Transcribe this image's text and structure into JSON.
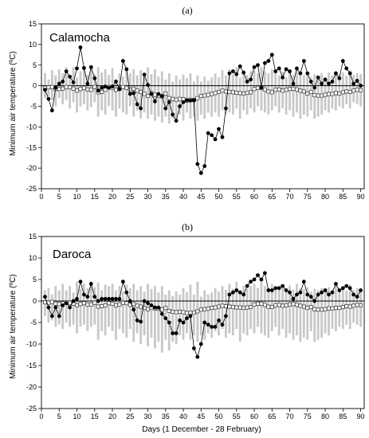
{
  "chart_data": [
    {
      "type": "line",
      "panel_label": "(a)",
      "site": "Calamocha",
      "ylabel": "Minimum air temperature (ºC)",
      "xlabel": "",
      "xlim": [
        0,
        91
      ],
      "ylim": [
        -25,
        15
      ],
      "xticks": [
        0,
        5,
        10,
        15,
        20,
        25,
        30,
        35,
        40,
        45,
        50,
        55,
        60,
        65,
        70,
        75,
        80,
        85,
        90
      ],
      "yticks": [
        15,
        10,
        5,
        0,
        -5,
        -10,
        -15,
        -20,
        -25
      ],
      "x": [
        1,
        2,
        3,
        4,
        5,
        6,
        7,
        8,
        9,
        10,
        11,
        12,
        13,
        14,
        15,
        16,
        17,
        18,
        19,
        20,
        21,
        22,
        23,
        24,
        25,
        26,
        27,
        28,
        29,
        30,
        31,
        32,
        33,
        34,
        35,
        36,
        37,
        38,
        39,
        40,
        41,
        42,
        43,
        44,
        45,
        46,
        47,
        48,
        49,
        50,
        51,
        52,
        53,
        54,
        55,
        56,
        57,
        58,
        59,
        60,
        61,
        62,
        63,
        64,
        65,
        66,
        67,
        68,
        69,
        70,
        71,
        72,
        73,
        74,
        75,
        76,
        77,
        78,
        79,
        80,
        81,
        82,
        83,
        84,
        85,
        86,
        87,
        88,
        89,
        90
      ],
      "series": [
        {
          "name": "",
          "marker": "filled-circle",
          "values": [
            -1.0,
            -3.2,
            -6.0,
            -0.5,
            0.5,
            1.0,
            3.5,
            2.2,
            0.8,
            4.2,
            9.3,
            4.3,
            0.5,
            4.5,
            1.8,
            -1.2,
            -0.5,
            -0.2,
            -0.5,
            -0.2,
            1.0,
            -0.8,
            6.0,
            4.0,
            -2.0,
            -1.8,
            -4.5,
            -5.5,
            2.7,
            0.2,
            -2.0,
            -3.8,
            -2.0,
            -2.5,
            -5.5,
            -4.0,
            -7.0,
            -8.5,
            -5.0,
            -4.0,
            -3.5,
            -3.6,
            -3.5,
            -19.0,
            -21.2,
            -19.5,
            -11.5,
            -12.0,
            -13.0,
            -10.5,
            -12.5,
            -5.5,
            3.0,
            3.5,
            2.8,
            4.7,
            3.2,
            1.0,
            1.5,
            4.5,
            5.0,
            -0.5,
            5.5,
            6.0,
            7.5,
            3.5,
            4.2,
            2.0,
            4.0,
            3.5,
            0.5,
            4.2,
            3.0,
            6.0,
            3.0,
            1.0,
            -0.5,
            2.0,
            0.5,
            1.5,
            0.5,
            1.0,
            3.0,
            1.8,
            6.0,
            4.2,
            3.0,
            0.5,
            1.2,
            0.0
          ]
        },
        {
          "name": "",
          "marker": "open-square",
          "values": [
            -0.5,
            -0.4,
            -0.3,
            -0.8,
            -0.8,
            -0.7,
            -0.3,
            -0.4,
            -0.7,
            -1.2,
            -0.8,
            -0.5,
            -0.9,
            -1.0,
            -0.3,
            -1.6,
            -1.5,
            -1.0,
            -0.3,
            -0.5,
            -1.0,
            -0.8,
            -0.3,
            -0.5,
            -1.0,
            -0.7,
            -1.2,
            -1.5,
            -2.0,
            -2.5,
            -1.8,
            -2.2,
            -2.4,
            -2.6,
            -1.9,
            -3.0,
            -3.2,
            -3.4,
            -3.2,
            -3.3,
            -3.6,
            -3.4,
            -3.5,
            -3.0,
            -2.5,
            -2.4,
            -2.2,
            -2.0,
            -1.8,
            -1.5,
            -1.2,
            -1.4,
            -1.5,
            -1.6,
            -1.7,
            -1.8,
            -1.9,
            -1.7,
            -1.6,
            -0.8,
            -0.5,
            -0.5,
            -0.9,
            -1.4,
            -1.6,
            -1.0,
            -0.9,
            -1.2,
            -1.0,
            -0.8,
            -0.7,
            -0.9,
            -1.2,
            -1.4,
            -1.9,
            -1.5,
            -2.3,
            -2.4,
            -2.4,
            -2.2,
            -2.0,
            -2.0,
            -1.8,
            -1.9,
            -1.6,
            -1.4,
            -1.5,
            -1.2,
            -1.0,
            -1.1
          ]
        }
      ],
      "range_bars": {
        "color": "#c8c8c8",
        "upper": [
          3.0,
          1.5,
          3.8,
          2.5,
          4.0,
          3.0,
          4.5,
          1.8,
          4.5,
          2.0,
          3.5,
          4.0,
          2.6,
          4.2,
          2.8,
          4.5,
          3.2,
          4.0,
          2.6,
          4.3,
          1.6,
          3.0,
          2.2,
          3.5,
          3.0,
          4.0,
          2.5,
          3.8,
          2.2,
          4.5,
          2.8,
          4.0,
          2.2,
          3.5,
          1.5,
          3.0,
          1.0,
          2.5,
          1.5,
          2.7,
          1.8,
          3.0,
          1.0,
          2.5,
          1.0,
          2.2,
          1.2,
          2.0,
          3.0,
          2.0,
          3.8,
          2.5,
          4.0,
          2.8,
          4.5,
          2.0,
          3.5,
          2.6,
          3.5,
          3.8,
          3.0,
          4.5,
          3.5,
          3.0,
          4.0,
          3.2,
          2.5,
          3.4,
          2.0,
          3.5,
          2.6,
          4.0,
          3.0,
          2.6,
          3.2,
          2.0,
          2.8,
          2.4,
          3.0,
          2.0,
          3.2,
          2.5,
          3.6,
          2.8,
          3.2,
          2.4,
          3.8,
          2.6,
          3.0,
          2.8
        ],
        "lower": [
          -3.0,
          -2.5,
          -3.5,
          -5.0,
          -3.0,
          -4.5,
          -3.5,
          -5.5,
          -4.0,
          -6.5,
          -5.0,
          -4.5,
          -6.0,
          -5.2,
          -4.0,
          -7.5,
          -6.0,
          -7.0,
          -5.0,
          -6.0,
          -7.5,
          -5.5,
          -6.5,
          -7.0,
          -5.0,
          -7.5,
          -6.0,
          -8.0,
          -6.5,
          -8.0,
          -7.0,
          -8.5,
          -7.5,
          -9.0,
          -7.5,
          -9.2,
          -8.0,
          -9.0,
          -7.0,
          -8.5,
          -6.5,
          -8.0,
          -7.5,
          -8.5,
          -7.0,
          -8.0,
          -6.5,
          -7.5,
          -6.5,
          -7.5,
          -6.0,
          -7.0,
          -6.5,
          -7.0,
          -5.5,
          -8.0,
          -6.0,
          -7.0,
          -5.5,
          -6.5,
          -5.0,
          -6.0,
          -6.5,
          -7.0,
          -6.0,
          -5.0,
          -6.5,
          -5.5,
          -7.0,
          -6.0,
          -7.5,
          -6.5,
          -8.0,
          -7.0,
          -7.5,
          -6.0,
          -8.0,
          -7.5,
          -7.0,
          -6.0,
          -6.5,
          -5.5,
          -6.0,
          -5.0,
          -5.5,
          -4.5,
          -5.5,
          -4.0,
          -4.5,
          -5.0
        ]
      }
    },
    {
      "type": "line",
      "panel_label": "(b)",
      "site": "Daroca",
      "ylabel": "Minimum air temperature (ºC)",
      "xlabel": "Days (1 December - 28 February)",
      "xlim": [
        0,
        91
      ],
      "ylim": [
        -25,
        15
      ],
      "xticks": [
        0,
        5,
        10,
        15,
        20,
        25,
        30,
        35,
        40,
        45,
        50,
        55,
        60,
        65,
        70,
        75,
        80,
        85,
        90
      ],
      "yticks": [
        15,
        10,
        5,
        0,
        -5,
        -10,
        -15,
        -20,
        -25
      ],
      "x": [
        1,
        2,
        3,
        4,
        5,
        6,
        7,
        8,
        9,
        10,
        11,
        12,
        13,
        14,
        15,
        16,
        17,
        18,
        19,
        20,
        21,
        22,
        23,
        24,
        25,
        26,
        27,
        28,
        29,
        30,
        31,
        32,
        33,
        34,
        35,
        36,
        37,
        38,
        39,
        40,
        41,
        42,
        43,
        44,
        45,
        46,
        47,
        48,
        49,
        50,
        51,
        52,
        53,
        54,
        55,
        56,
        57,
        58,
        59,
        60,
        61,
        62,
        63,
        64,
        65,
        66,
        67,
        68,
        69,
        70,
        71,
        72,
        73,
        74,
        75,
        76,
        77,
        78,
        79,
        80,
        81,
        82,
        83,
        84,
        85,
        86,
        87,
        88,
        89,
        90
      ],
      "series": [
        {
          "name": "",
          "marker": "filled-circle",
          "values": [
            1.0,
            -1.5,
            -3.5,
            -1.5,
            -3.5,
            -1.0,
            -0.5,
            -1.5,
            0.0,
            0.5,
            4.5,
            1.5,
            1.0,
            4.0,
            1.0,
            0.0,
            0.5,
            0.5,
            0.5,
            0.5,
            0.5,
            0.5,
            4.5,
            2.0,
            0.0,
            -2.0,
            -4.5,
            -4.8,
            0.0,
            -0.5,
            -1.0,
            -1.5,
            -1.5,
            -3.0,
            -4.0,
            -5.0,
            -7.5,
            -7.5,
            -4.5,
            -5.0,
            -4.0,
            -3.5,
            -11.0,
            -13.0,
            -10.0,
            -5.0,
            -5.5,
            -6.0,
            -6.0,
            -4.5,
            -5.5,
            -3.5,
            1.5,
            2.0,
            2.5,
            2.0,
            1.5,
            3.5,
            4.5,
            5.0,
            6.0,
            5.0,
            6.5,
            2.5,
            2.5,
            3.0,
            3.0,
            3.5,
            2.5,
            2.0,
            0.5,
            1.5,
            2.0,
            4.5,
            1.5,
            1.0,
            0.0,
            1.5,
            2.0,
            2.5,
            1.5,
            2.0,
            4.0,
            2.5,
            3.0,
            3.5,
            3.0,
            1.5,
            1.0,
            2.5
          ]
        },
        {
          "name": "",
          "marker": "open-square",
          "values": [
            -0.3,
            -0.4,
            -0.2,
            -0.6,
            -0.7,
            -0.5,
            -0.3,
            -0.4,
            -0.6,
            -1.0,
            -0.7,
            -0.5,
            -0.8,
            -0.8,
            -0.4,
            -1.3,
            -1.2,
            -1.0,
            -0.5,
            -0.6,
            -1.0,
            -0.8,
            -0.4,
            -0.5,
            -0.9,
            -0.7,
            -1.1,
            -1.3,
            -1.6,
            -1.9,
            -1.5,
            -1.7,
            -1.8,
            -2.0,
            -1.6,
            -2.3,
            -2.5,
            -2.6,
            -2.5,
            -2.6,
            -2.8,
            -2.7,
            -2.7,
            -2.4,
            -2.0,
            -1.9,
            -1.8,
            -1.6,
            -1.5,
            -1.3,
            -1.1,
            -1.2,
            -1.3,
            -1.4,
            -1.5,
            -1.5,
            -1.6,
            -1.5,
            -1.4,
            -0.8,
            -0.6,
            -0.6,
            -0.9,
            -1.3,
            -1.4,
            -1.0,
            -0.9,
            -1.1,
            -1.0,
            -0.8,
            -0.7,
            -0.9,
            -1.1,
            -1.3,
            -1.6,
            -1.4,
            -1.9,
            -2.0,
            -2.0,
            -1.9,
            -1.7,
            -1.7,
            -1.6,
            -1.6,
            -1.4,
            -1.2,
            -1.3,
            -1.1,
            -0.9,
            -1.0
          ]
        }
      ],
      "range_bars": {
        "color": "#c8c8c8",
        "upper": [
          2.5,
          3.0,
          1.5,
          3.5,
          2.5,
          4.0,
          2.5,
          3.5,
          2.0,
          4.5,
          2.8,
          4.0,
          3.0,
          4.5,
          3.2,
          4.3,
          2.5,
          3.8,
          3.5,
          4.0,
          2.5,
          3.5,
          2.2,
          3.8,
          3.0,
          4.0,
          2.5,
          3.5,
          2.2,
          4.0,
          2.8,
          3.5,
          2.0,
          3.5,
          1.5,
          2.5,
          1.2,
          2.2,
          1.5,
          3.0,
          2.0,
          3.8,
          1.5,
          4.5,
          1.0,
          2.5,
          1.5,
          2.0,
          3.0,
          2.2,
          3.5,
          2.6,
          4.0,
          2.8,
          4.5,
          2.5,
          3.5,
          2.8,
          3.5,
          4.0,
          3.0,
          4.5,
          3.5,
          3.0,
          4.0,
          3.2,
          2.6,
          3.5,
          2.2,
          3.6,
          2.6,
          4.0,
          3.0,
          2.8,
          3.2,
          2.2,
          2.8,
          2.5,
          3.0,
          2.2,
          3.2,
          2.6,
          3.6,
          2.8,
          3.2,
          2.4,
          3.8,
          2.6,
          3.0,
          2.8
        ],
        "lower": [
          -3.5,
          -5.0,
          -4.5,
          -6.0,
          -5.5,
          -6.5,
          -5.0,
          -6.0,
          -5.5,
          -7.5,
          -6.0,
          -5.5,
          -7.0,
          -6.0,
          -5.5,
          -9.0,
          -7.0,
          -8.0,
          -6.0,
          -7.0,
          -9.0,
          -6.5,
          -7.5,
          -8.5,
          -6.5,
          -9.5,
          -7.5,
          -10.0,
          -8.0,
          -10.5,
          -8.5,
          -11.0,
          -9.5,
          -12.0,
          -9.0,
          -11.5,
          -9.5,
          -10.0,
          -8.0,
          -9.0,
          -7.5,
          -9.0,
          -8.0,
          -9.5,
          -8.0,
          -9.0,
          -7.5,
          -8.5,
          -7.0,
          -8.0,
          -6.5,
          -8.5,
          -7.5,
          -8.0,
          -6.5,
          -9.5,
          -7.5,
          -8.0,
          -6.5,
          -7.5,
          -6.0,
          -7.5,
          -8.0,
          -8.5,
          -7.0,
          -6.0,
          -8.0,
          -6.5,
          -8.5,
          -7.5,
          -9.0,
          -8.0,
          -9.5,
          -8.5,
          -9.0,
          -7.0,
          -9.5,
          -9.0,
          -8.5,
          -7.5,
          -8.0,
          -6.5,
          -7.0,
          -6.0,
          -6.5,
          -5.5,
          -6.5,
          -5.0,
          -5.5,
          -6.0
        ]
      }
    }
  ]
}
